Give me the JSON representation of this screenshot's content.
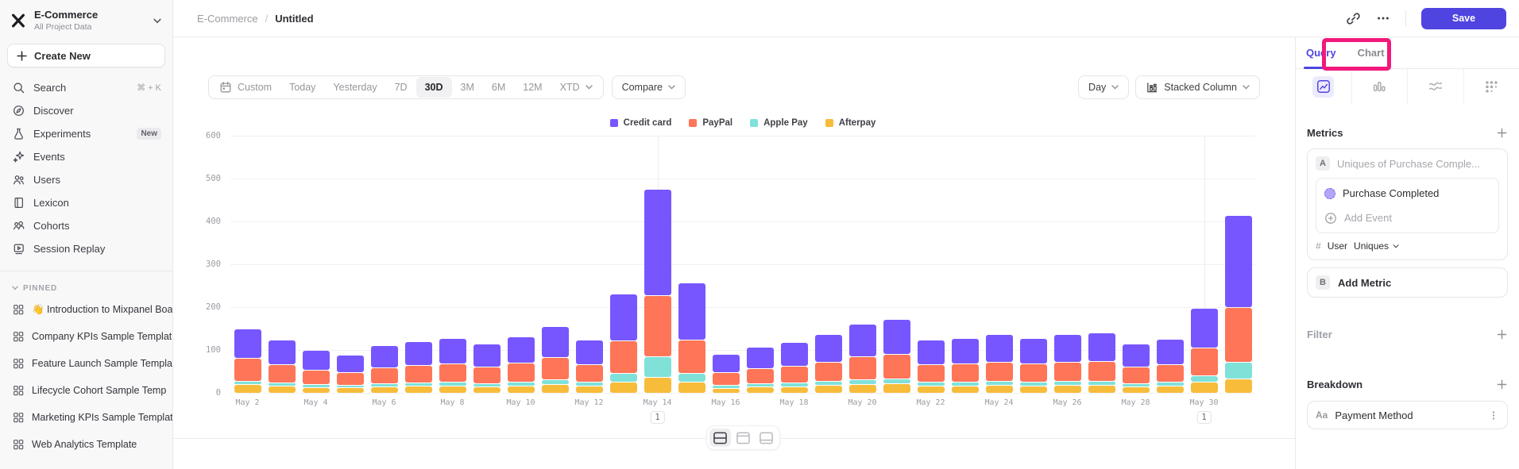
{
  "sidebar": {
    "project_name": "E-Commerce",
    "project_sub": "All Project Data",
    "create_new": "Create New",
    "nav": [
      {
        "label": "Search",
        "icon": "search",
        "shortcut": "⌘ + K"
      },
      {
        "label": "Discover",
        "icon": "discover"
      },
      {
        "label": "Experiments",
        "icon": "experiments",
        "badge": "New"
      },
      {
        "label": "Events",
        "icon": "events"
      },
      {
        "label": "Users",
        "icon": "users"
      },
      {
        "label": "Lexicon",
        "icon": "lexicon"
      },
      {
        "label": "Cohorts",
        "icon": "cohorts"
      },
      {
        "label": "Session Replay",
        "icon": "session-replay"
      }
    ],
    "pinned_header": "PINNED",
    "pinned": [
      {
        "label": "👋 Introduction to Mixpanel Boa",
        "icon": "board"
      },
      {
        "label": "Company KPIs Sample Templat",
        "icon": "board"
      },
      {
        "label": "Feature Launch Sample Templa",
        "icon": "board"
      },
      {
        "label": "Lifecycle Cohort Sample Temp",
        "icon": "board"
      },
      {
        "label": "Marketing KPIs Sample Templat",
        "icon": "board"
      },
      {
        "label": "Web Analytics Template",
        "icon": "board"
      }
    ]
  },
  "header": {
    "breadcrumb_project": "E-Commerce",
    "breadcrumb_sep": "/",
    "breadcrumb_page": "Untitled",
    "save": "Save"
  },
  "toolbar": {
    "ranges": [
      {
        "label": "Custom",
        "icon": "calendar"
      },
      {
        "label": "Today"
      },
      {
        "label": "Yesterday"
      },
      {
        "label": "7D"
      },
      {
        "label": "30D",
        "active": true
      },
      {
        "label": "3M"
      },
      {
        "label": "6M"
      },
      {
        "label": "12M"
      },
      {
        "label": "XTD",
        "dropdown": true
      }
    ],
    "compare": "Compare",
    "granularity": "Day",
    "chart_type": "Stacked Column"
  },
  "panel": {
    "tabs": [
      {
        "label": "Query",
        "active": true
      },
      {
        "label": "Chart"
      }
    ],
    "metrics": {
      "title": "Metrics",
      "row_a_badge": "A",
      "row_a_placeholder": "Uniques of Purchase Comple...",
      "event_name": "Purchase Completed",
      "add_event": "Add Event",
      "measure_hash": "#",
      "measure_scope": "User",
      "measure_agg": "Uniques",
      "row_b_badge": "B",
      "add_metric": "Add Metric"
    },
    "filter_title": "Filter",
    "breakdown_title": "Breakdown",
    "breakdown_item_type": "Aa",
    "breakdown_item_label": "Payment Method"
  },
  "ui_colors": {
    "accent": "#4F44E0",
    "highlight_box": "#F2197B"
  },
  "chart_data": {
    "type": "bar",
    "stacked": true,
    "title": "",
    "xlabel": "",
    "ylabel": "",
    "ylim": [
      0,
      600
    ],
    "yticks": [
      0,
      100,
      200,
      300,
      400,
      500,
      600
    ],
    "grid": "horizontal",
    "legend_position": "top",
    "x_tick_label_every": 2,
    "categories": [
      "May 2",
      "May 3",
      "May 4",
      "May 5",
      "May 6",
      "May 7",
      "May 8",
      "May 9",
      "May 10",
      "May 11",
      "May 12",
      "May 13",
      "May 14",
      "May 15",
      "May 16",
      "May 17",
      "May 18",
      "May 19",
      "May 20",
      "May 21",
      "May 22",
      "May 23",
      "May 24",
      "May 25",
      "May 26",
      "May 27",
      "May 28",
      "May 29",
      "May 30",
      "May 31"
    ],
    "series": [
      {
        "name": "Credit card",
        "color": "#7856FF",
        "values": [
          68,
          58,
          46,
          40,
          52,
          56,
          60,
          54,
          62,
          73,
          57,
          110,
          248,
          133,
          43,
          50,
          55,
          65,
          76,
          81,
          57,
          60,
          65,
          60,
          65,
          67,
          54,
          59,
          93,
          215
        ]
      },
      {
        "name": "PayPal",
        "color": "#FF7557",
        "values": [
          53,
          42,
          34,
          29,
          37,
          40,
          42,
          38,
          44,
          51,
          40,
          76,
          142,
          77,
          30,
          36,
          39,
          45,
          53,
          57,
          40,
          42,
          45,
          42,
          45,
          47,
          38,
          41,
          65,
          128
        ]
      },
      {
        "name": "Apple Pay",
        "color": "#80E1D9",
        "values": [
          7,
          8,
          7,
          6,
          8,
          8,
          9,
          8,
          9,
          11,
          9,
          21,
          48,
          20,
          7,
          8,
          9,
          10,
          12,
          12,
          9,
          9,
          10,
          9,
          10,
          10,
          8,
          9,
          14,
          38
        ]
      },
      {
        "name": "Afterpay",
        "color": "#F8BC3B",
        "values": [
          20,
          17,
          13,
          13,
          15,
          16,
          17,
          15,
          17,
          20,
          16,
          25,
          37,
          25,
          12,
          14,
          15,
          18,
          21,
          22,
          16,
          17,
          18,
          17,
          18,
          18,
          15,
          16,
          26,
          34
        ]
      }
    ],
    "annotations": [
      {
        "category": "May 14",
        "label": "1"
      },
      {
        "category": "May 30",
        "label": "1"
      }
    ]
  }
}
